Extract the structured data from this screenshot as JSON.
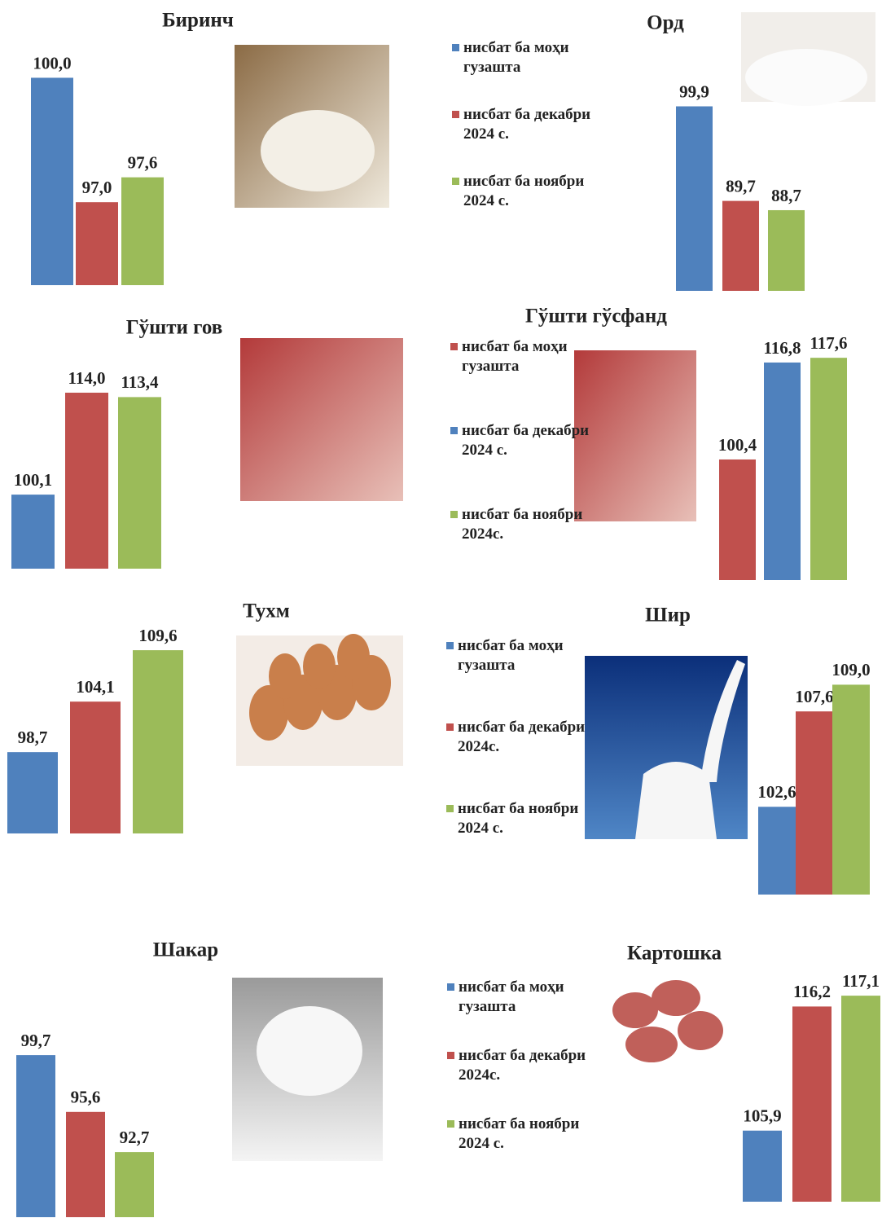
{
  "chart_data": [
    {
      "type": "bar",
      "title": "Биринч",
      "ylim": [
        95,
        100.5
      ],
      "series": [
        {
          "color": "#4f81bd",
          "values": [
            100.0
          ],
          "value_labels": [
            "100,0"
          ]
        },
        {
          "color": "#c0504d",
          "values": [
            97.0
          ],
          "value_labels": [
            "97,0"
          ]
        },
        {
          "color": "#9bbb59",
          "values": [
            97.6
          ],
          "value_labels": [
            "97,6"
          ]
        }
      ]
    },
    {
      "type": "bar",
      "title": "Орд",
      "ylim": [
        80,
        101
      ],
      "series": [
        {
          "name": "нисбат ба моҳи гузашта",
          "color": "#4f81bd",
          "values": [
            99.9
          ],
          "value_labels": [
            "99,9"
          ]
        },
        {
          "name": "нисбат ба декабри 2024 с.",
          "color": "#c0504d",
          "values": [
            89.7
          ],
          "value_labels": [
            "89,7"
          ]
        },
        {
          "name": "нисбат ба ноябри 2024 с.",
          "color": "#9bbb59",
          "values": [
            88.7
          ],
          "value_labels": [
            "88,7"
          ]
        }
      ]
    },
    {
      "type": "bar",
      "title": "Гўшти гов",
      "ylim": [
        90,
        116
      ],
      "series": [
        {
          "color": "#4f81bd",
          "values": [
            100.1
          ],
          "value_labels": [
            "100,1"
          ]
        },
        {
          "color": "#c0504d",
          "values": [
            114.0
          ],
          "value_labels": [
            "114,0"
          ]
        },
        {
          "color": "#9bbb59",
          "values": [
            113.4
          ],
          "value_labels": [
            "113,4"
          ]
        }
      ]
    },
    {
      "type": "bar",
      "title": "Гўшти гўсфанд",
      "ylim": [
        80,
        119
      ],
      "series": [
        {
          "name": "нисбат ба моҳи гузашта",
          "color": "#c0504d",
          "values": [
            100.4
          ],
          "value_labels": [
            "100,4"
          ]
        },
        {
          "name": "нисбат ба декабри 2024 с.",
          "color": "#4f81bd",
          "values": [
            116.8
          ],
          "value_labels": [
            "116,8"
          ]
        },
        {
          "name": "нисбат ба ноябри 2024с.",
          "color": "#9bbb59",
          "values": [
            117.6
          ],
          "value_labels": [
            "117,6"
          ]
        }
      ]
    },
    {
      "type": "bar",
      "title": "Тухм",
      "ylim": [
        90,
        111
      ],
      "series": [
        {
          "color": "#4f81bd",
          "values": [
            98.7
          ],
          "value_labels": [
            "98,7"
          ]
        },
        {
          "color": "#c0504d",
          "values": [
            104.1
          ],
          "value_labels": [
            "104,1"
          ]
        },
        {
          "color": "#9bbb59",
          "values": [
            109.6
          ],
          "value_labels": [
            "109,6"
          ]
        }
      ]
    },
    {
      "type": "bar",
      "title": "Шир",
      "ylim": [
        98,
        110
      ],
      "series": [
        {
          "name": "нисбат ба моҳи гузашта",
          "color": "#4f81bd",
          "values": [
            102.6
          ],
          "value_labels": [
            "102,6"
          ]
        },
        {
          "name": "нисбат ба декабри 2024с.",
          "color": "#c0504d",
          "values": [
            107.6
          ],
          "value_labels": [
            "107,6"
          ]
        },
        {
          "name": "нисбат ба ноябри 2024 с.",
          "color": "#9bbb59",
          "values": [
            109.0
          ],
          "value_labels": [
            "109,0"
          ]
        }
      ]
    },
    {
      "type": "bar",
      "title": "Шакар",
      "ylim": [
        88,
        101
      ],
      "series": [
        {
          "color": "#4f81bd",
          "values": [
            99.7
          ],
          "value_labels": [
            "99,7"
          ]
        },
        {
          "color": "#c0504d",
          "values": [
            95.6
          ],
          "value_labels": [
            "95,6"
          ]
        },
        {
          "color": "#9bbb59",
          "values": [
            92.7
          ],
          "value_labels": [
            "92,7"
          ]
        }
      ]
    },
    {
      "type": "bar",
      "title": "Картошка",
      "ylim": [
        100,
        119
      ],
      "series": [
        {
          "name": "нисбат ба моҳи гузашта",
          "color": "#4f81bd",
          "values": [
            105.9
          ],
          "value_labels": [
            "105,9"
          ]
        },
        {
          "name": "нисбат ба декабри 2024с.",
          "color": "#c0504d",
          "values": [
            116.2
          ],
          "value_labels": [
            "116,2"
          ]
        },
        {
          "name": "нисбат ба ноябри 2024 с.",
          "color": "#9bbb59",
          "values": [
            117.1
          ],
          "value_labels": [
            "117,1"
          ]
        }
      ]
    }
  ]
}
